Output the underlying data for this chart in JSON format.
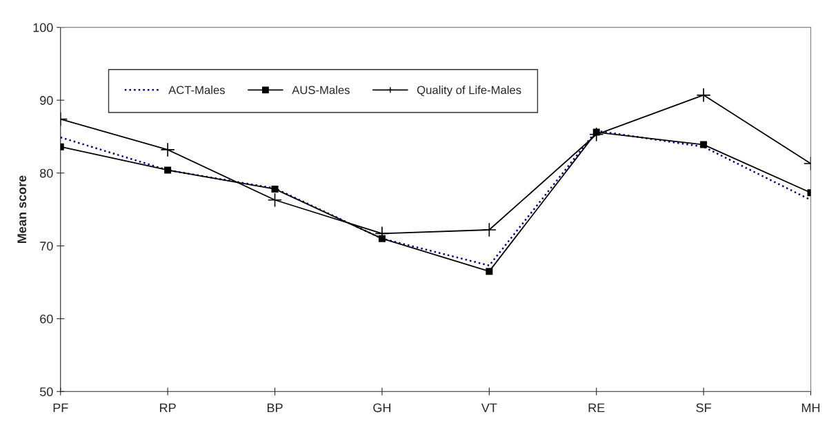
{
  "chart_data": {
    "type": "line",
    "ylabel": "Mean score",
    "categories": [
      "PF",
      "RP",
      "BP",
      "GH",
      "VT",
      "RE",
      "SF",
      "MH"
    ],
    "series": [
      {
        "name": "ACT-Males",
        "color": "#000080",
        "marker": "none",
        "line_style": "dotted",
        "values": [
          84.9,
          80.4,
          77.9,
          71.0,
          67.3,
          85.8,
          83.6,
          76.3
        ]
      },
      {
        "name": "AUS-Males",
        "color": "#000000",
        "marker": "square",
        "line_style": "solid",
        "values": [
          83.6,
          80.4,
          77.8,
          71.0,
          66.5,
          85.6,
          83.9,
          77.3
        ]
      },
      {
        "name": "Quality of Life-Males",
        "color": "#000000",
        "marker": "cross",
        "line_style": "solid",
        "values": [
          87.4,
          83.2,
          76.3,
          71.7,
          72.2,
          85.3,
          90.7,
          81.3
        ]
      }
    ],
    "ylim": [
      50,
      100
    ],
    "yticks": [
      50,
      60,
      70,
      80,
      90,
      100
    ],
    "grid": false,
    "legend": "top"
  }
}
